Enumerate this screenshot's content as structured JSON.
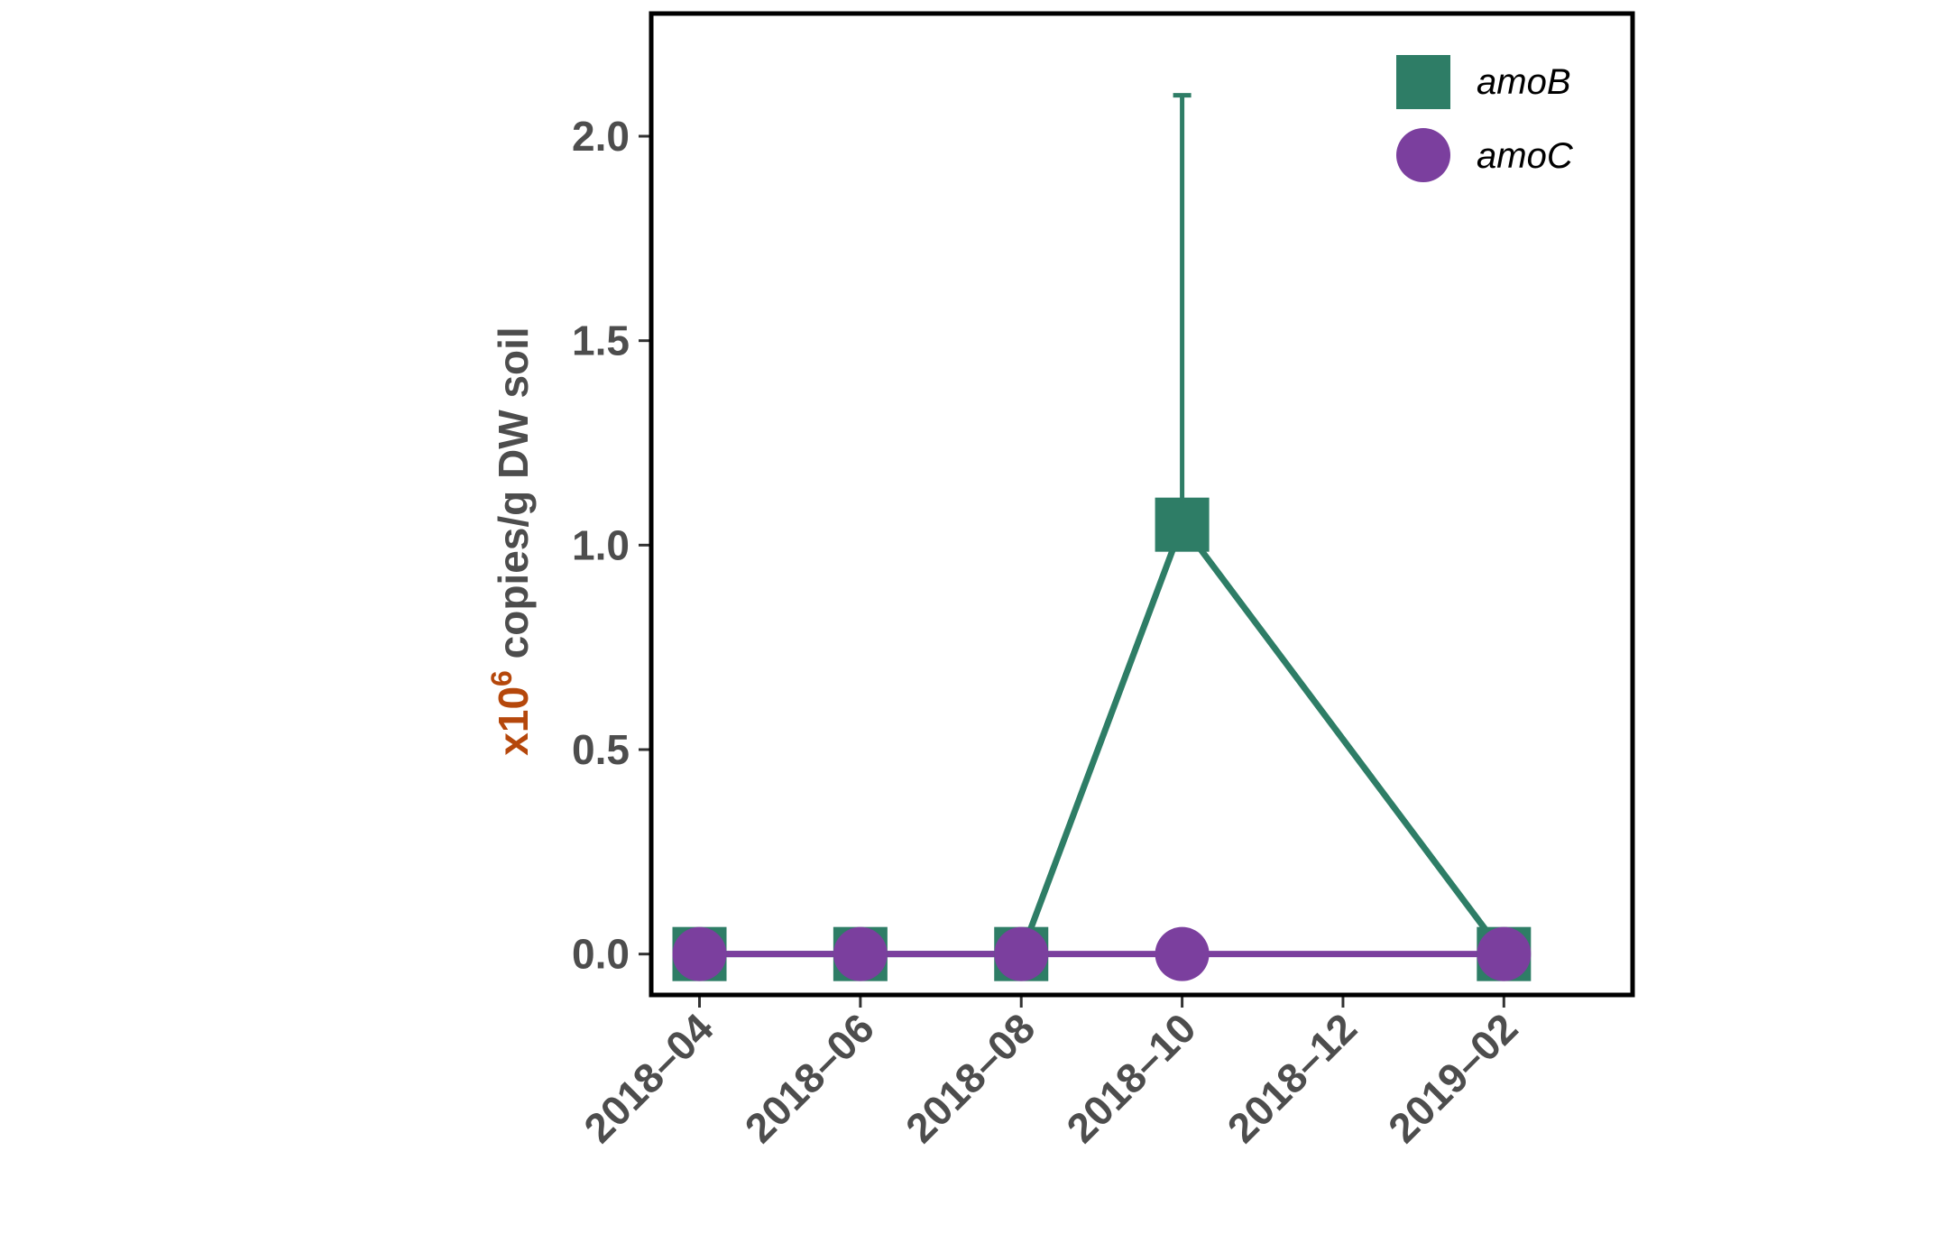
{
  "chart_data": {
    "type": "line",
    "ylabel": {
      "prefix": "x10",
      "superscript": "6",
      "rest": " copies/g DW soil"
    },
    "x_ticks": [
      "2018–04",
      "2018–06",
      "2018–08",
      "2018–10",
      "2018–12",
      "2019–02"
    ],
    "x_tick_months": [
      3,
      5,
      7,
      9,
      11,
      13
    ],
    "x_range_months": [
      2.4,
      14.6
    ],
    "y_ticks": [
      "0.0",
      "0.5",
      "1.0",
      "1.5",
      "2.0"
    ],
    "y_tick_values": [
      0,
      0.5,
      1.0,
      1.5,
      2.0
    ],
    "ylim": [
      -0.1,
      2.3
    ],
    "x": [
      "2018-04",
      "2018-06",
      "2018-08",
      "2018-10",
      "2019-02"
    ],
    "series": [
      {
        "name": "amoB",
        "marker": "square",
        "color": "#2e7d66",
        "values": [
          0.0,
          0.0,
          0.0,
          1.05,
          0.0
        ],
        "error_upper": [
          0.0,
          0.0,
          0.0,
          2.1,
          0.0
        ]
      },
      {
        "name": "amoC",
        "marker": "circle",
        "color": "#7b3f9e",
        "values": [
          0.0,
          0.0,
          0.0,
          0.0,
          0.0
        ],
        "error_upper": [
          0.0,
          0.0,
          0.0,
          0.0,
          0.0
        ]
      }
    ],
    "grid": false,
    "legend_position": "top-right"
  }
}
